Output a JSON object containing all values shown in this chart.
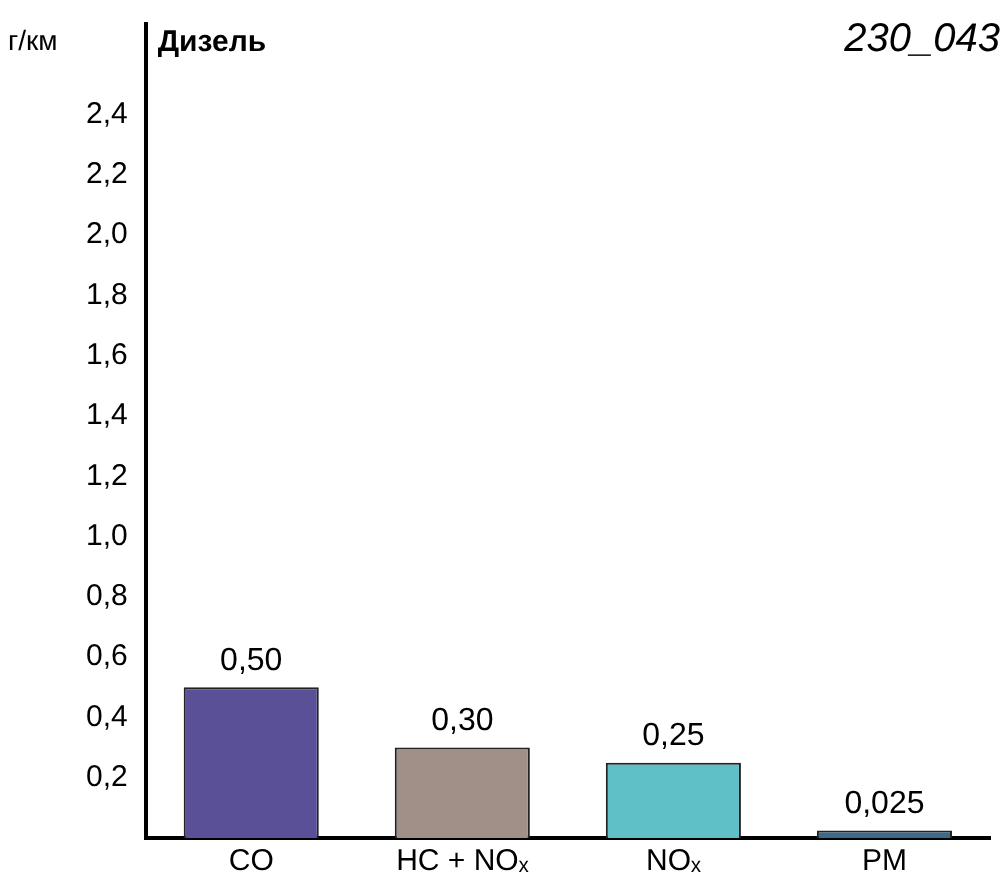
{
  "chart_data": {
    "type": "bar",
    "title": "Дизель",
    "ylabel": "г/км",
    "annotations": [
      "230_043"
    ],
    "categories": [
      "CO",
      "HC + NOₓ",
      "NOₓ",
      "PM"
    ],
    "values": [
      0.5,
      0.3,
      0.25,
      0.025
    ],
    "colors": [
      "#5a5098",
      "#a09088",
      "#60c0c8",
      "#3e6a8a"
    ],
    "value_labels": [
      "0,50",
      "0,30",
      "0,25",
      "0,025"
    ],
    "ylim": [
      0,
      2.7
    ],
    "yticks": [
      {
        "value": 0.2,
        "label": "0,2"
      },
      {
        "value": 0.4,
        "label": "0,4"
      },
      {
        "value": 0.6,
        "label": "0,6"
      },
      {
        "value": 0.8,
        "label": "0,8"
      },
      {
        "value": 1.0,
        "label": "1,0"
      },
      {
        "value": 1.2,
        "label": "1,2"
      },
      {
        "value": 1.4,
        "label": "1,4"
      },
      {
        "value": 1.6,
        "label": "1,6"
      },
      {
        "value": 1.8,
        "label": "1,8"
      },
      {
        "value": 2.0,
        "label": "2,0"
      },
      {
        "value": 2.2,
        "label": "2,2"
      },
      {
        "value": 2.4,
        "label": "2,4"
      }
    ],
    "grid": false,
    "legend": false
  }
}
